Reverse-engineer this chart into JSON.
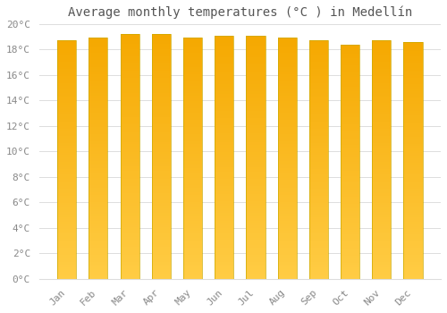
{
  "title": "Average monthly temperatures (°C ) in Medellín",
  "months": [
    "Jan",
    "Feb",
    "Mar",
    "Apr",
    "May",
    "Jun",
    "Jul",
    "Aug",
    "Sep",
    "Oct",
    "Nov",
    "Dec"
  ],
  "temperatures": [
    18.7,
    18.9,
    19.2,
    19.2,
    18.9,
    19.1,
    19.1,
    18.9,
    18.7,
    18.4,
    18.7,
    18.6
  ],
  "bar_color_bottom": "#FFCC44",
  "bar_color_top": "#F5A800",
  "bar_edge_color": "#CCAA00",
  "background_color": "#FFFFFF",
  "grid_color": "#DDDDDD",
  "ylim": [
    0,
    20
  ],
  "ytick_step": 2,
  "title_fontsize": 10,
  "tick_fontsize": 8,
  "tick_color": "#888888",
  "title_color": "#555555",
  "bar_width": 0.6
}
